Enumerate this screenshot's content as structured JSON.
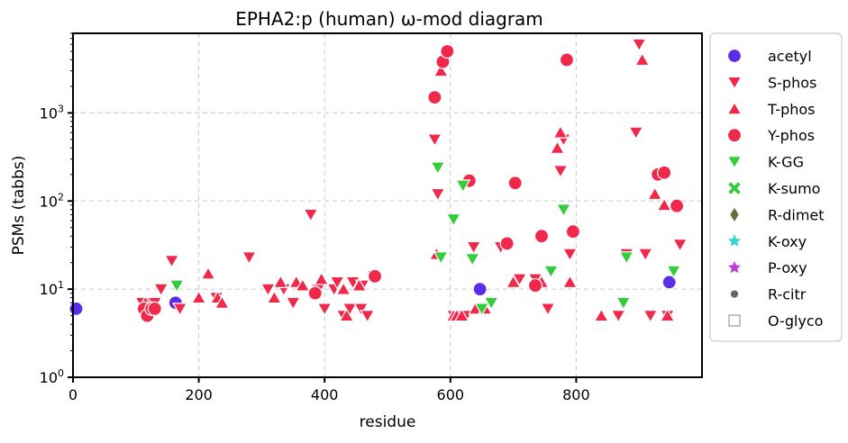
{
  "chart_data": {
    "type": "scatter",
    "title": "EPHA2:p (human) ω-mod diagram",
    "xlabel": "residue",
    "ylabel": "PSMs (tabbs)",
    "xlim": [
      0,
      1000
    ],
    "ylim": [
      1,
      8000
    ],
    "yscale": "log",
    "grid": true,
    "legend_position": "outside-right",
    "xticks": [
      {
        "value": 0,
        "label": "0"
      },
      {
        "value": 200,
        "label": "200"
      },
      {
        "value": 400,
        "label": "400"
      },
      {
        "value": 600,
        "label": "600"
      },
      {
        "value": 800,
        "label": "800"
      }
    ],
    "yticks": [
      {
        "value": 1,
        "base": "10",
        "exp": "0"
      },
      {
        "value": 10,
        "base": "10",
        "exp": "1"
      },
      {
        "value": 100,
        "base": "10",
        "exp": "2"
      },
      {
        "value": 1000,
        "base": "10",
        "exp": "3"
      }
    ],
    "series": [
      {
        "name": "acetyl",
        "marker": "circle",
        "color": "#5a2ee6",
        "points": [
          [
            5,
            6
          ],
          [
            163,
            7
          ],
          [
            647,
            10
          ],
          [
            948,
            12
          ]
        ]
      },
      {
        "name": "S-phos",
        "marker": "triangle-down",
        "color": "#f0284a",
        "points": [
          [
            110,
            7
          ],
          [
            118,
            6
          ],
          [
            125,
            7
          ],
          [
            130,
            7
          ],
          [
            140,
            10
          ],
          [
            157,
            21
          ],
          [
            170,
            6
          ],
          [
            228,
            8
          ],
          [
            280,
            23
          ],
          [
            310,
            10
          ],
          [
            335,
            10
          ],
          [
            350,
            7
          ],
          [
            378,
            70
          ],
          [
            390,
            10
          ],
          [
            400,
            6
          ],
          [
            415,
            10
          ],
          [
            420,
            12
          ],
          [
            430,
            5
          ],
          [
            440,
            6
          ],
          [
            445,
            12
          ],
          [
            458,
            6
          ],
          [
            460,
            11
          ],
          [
            468,
            5
          ],
          [
            478,
            14
          ],
          [
            575,
            500
          ],
          [
            580,
            120
          ],
          [
            605,
            5
          ],
          [
            612,
            5
          ],
          [
            625,
            5
          ],
          [
            637,
            30
          ],
          [
            680,
            30
          ],
          [
            710,
            13
          ],
          [
            735,
            13
          ],
          [
            755,
            6
          ],
          [
            775,
            220
          ],
          [
            780,
            500
          ],
          [
            790,
            25
          ],
          [
            867,
            5
          ],
          [
            880,
            25
          ],
          [
            895,
            600
          ],
          [
            900,
            6000
          ],
          [
            910,
            25
          ],
          [
            918,
            5
          ],
          [
            945,
            5
          ],
          [
            965,
            32
          ]
        ]
      },
      {
        "name": "T-phos",
        "marker": "triangle-up",
        "color": "#f0284a",
        "points": [
          [
            115,
            7
          ],
          [
            200,
            8
          ],
          [
            215,
            15
          ],
          [
            230,
            8
          ],
          [
            237,
            7
          ],
          [
            320,
            8
          ],
          [
            330,
            12
          ],
          [
            355,
            12
          ],
          [
            365,
            11
          ],
          [
            395,
            13
          ],
          [
            430,
            10
          ],
          [
            435,
            5
          ],
          [
            455,
            11
          ],
          [
            578,
            25
          ],
          [
            585,
            3000
          ],
          [
            605,
            5
          ],
          [
            610,
            5
          ],
          [
            618,
            5
          ],
          [
            640,
            6
          ],
          [
            655,
            6
          ],
          [
            700,
            12
          ],
          [
            745,
            12
          ],
          [
            770,
            400
          ],
          [
            775,
            600
          ],
          [
            790,
            12
          ],
          [
            840,
            5
          ],
          [
            905,
            4000
          ],
          [
            925,
            120
          ],
          [
            940,
            90
          ],
          [
            945,
            5
          ]
        ]
      },
      {
        "name": "Y-phos",
        "marker": "circle",
        "color": "#f0284a",
        "points": [
          [
            113,
            6
          ],
          [
            118,
            5
          ],
          [
            125,
            6
          ],
          [
            130,
            6
          ],
          [
            385,
            9
          ],
          [
            480,
            14
          ],
          [
            575,
            1500
          ],
          [
            588,
            3800
          ],
          [
            595,
            5000
          ],
          [
            630,
            170
          ],
          [
            690,
            33
          ],
          [
            703,
            160
          ],
          [
            735,
            11
          ],
          [
            745,
            40
          ],
          [
            785,
            4000
          ],
          [
            795,
            45
          ],
          [
            930,
            200
          ],
          [
            940,
            210
          ],
          [
            960,
            88
          ]
        ]
      },
      {
        "name": "K-GG",
        "marker": "triangle-down",
        "color": "#33cc3a",
        "points": [
          [
            165,
            11
          ],
          [
            580,
            240
          ],
          [
            585,
            23
          ],
          [
            605,
            62
          ],
          [
            620,
            150
          ],
          [
            635,
            22
          ],
          [
            650,
            6
          ],
          [
            665,
            7
          ],
          [
            760,
            16
          ],
          [
            780,
            80
          ],
          [
            875,
            7
          ],
          [
            880,
            23
          ],
          [
            955,
            16
          ]
        ]
      },
      {
        "name": "K-sumo",
        "marker": "x",
        "color": "#33cc3a",
        "points": []
      },
      {
        "name": "R-dimet",
        "marker": "diamond",
        "color": "#6b6b3a",
        "points": []
      },
      {
        "name": "K-oxy",
        "marker": "star",
        "color": "#33d4d4",
        "points": []
      },
      {
        "name": "P-oxy",
        "marker": "star",
        "color": "#c03ad8",
        "points": []
      },
      {
        "name": "R-citr",
        "marker": "dot",
        "color": "#666666",
        "points": []
      },
      {
        "name": "O-glyco",
        "marker": "square-open",
        "color": "#999999",
        "points": []
      }
    ]
  }
}
